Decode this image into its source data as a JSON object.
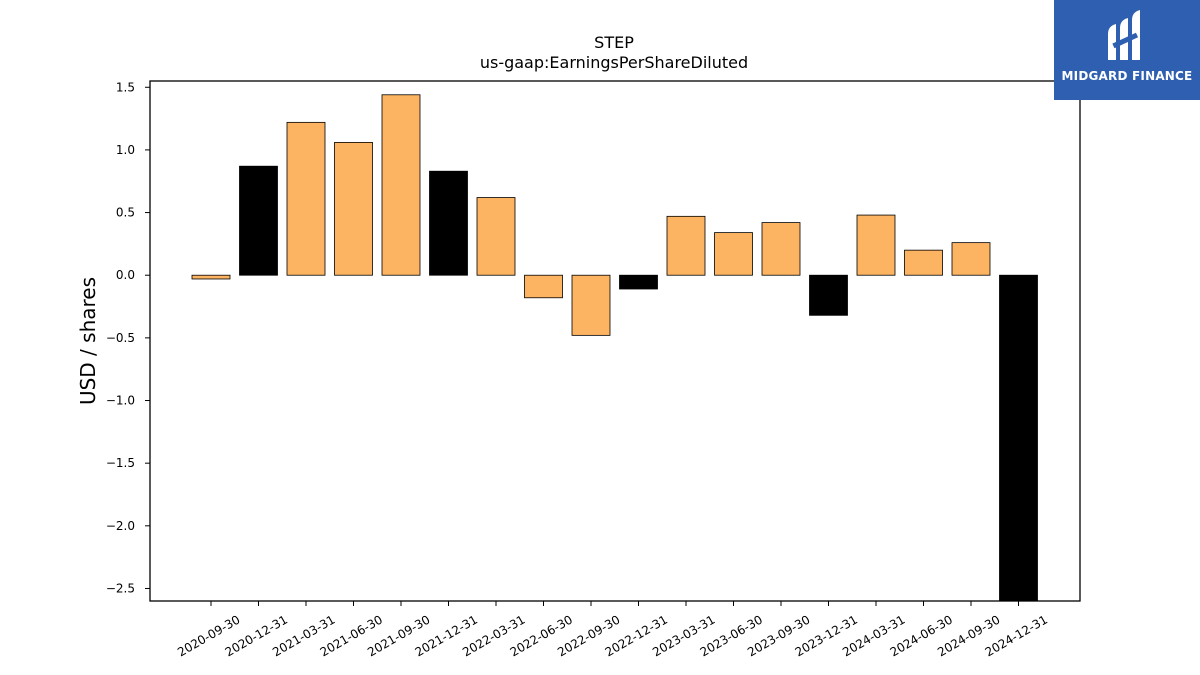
{
  "chart_data": {
    "type": "bar",
    "title": "STEP",
    "subtitle": "us-gaap:EarningsPerShareDiluted",
    "xlabel": "",
    "ylabel": "USD / shares",
    "ylim": [
      -2.6,
      1.55
    ],
    "yticks": [
      1.5,
      1.0,
      0.5,
      0.0,
      -0.5,
      -1.0,
      -1.5,
      -2.0,
      -2.5
    ],
    "ytick_labels": [
      "1.5",
      "1.0",
      "0.5",
      "0.0",
      "−0.5",
      "−1.0",
      "−1.5",
      "−2.0",
      "−2.5"
    ],
    "grid": false,
    "categories": [
      "2020-09-30",
      "2020-12-31",
      "2021-03-31",
      "2021-06-30",
      "2021-09-30",
      "2021-12-31",
      "2022-03-31",
      "2022-06-30",
      "2022-09-30",
      "2022-12-31",
      "2023-03-31",
      "2023-06-30",
      "2023-09-30",
      "2023-12-31",
      "2024-03-31",
      "2024-06-30",
      "2024-09-30",
      "2024-12-31"
    ],
    "values": [
      -0.03,
      0.87,
      1.22,
      1.06,
      1.44,
      0.83,
      0.62,
      -0.18,
      -0.48,
      -0.11,
      0.47,
      0.34,
      0.42,
      -0.32,
      0.48,
      0.2,
      0.26,
      -2.6
    ],
    "bar_colors": [
      "#fdb462",
      "#000000",
      "#fdb462",
      "#fdb462",
      "#fdb462",
      "#000000",
      "#fdb462",
      "#fdb462",
      "#fdb462",
      "#000000",
      "#fdb462",
      "#fdb462",
      "#fdb462",
      "#000000",
      "#fdb462",
      "#fdb462",
      "#fdb462",
      "#000000"
    ],
    "colors": {
      "quarter": "#fdb462",
      "annual": "#000000",
      "edge": "#000000"
    }
  },
  "logo": {
    "text": "MIDGARD FINANCE",
    "background": "#2f5fb0"
  }
}
